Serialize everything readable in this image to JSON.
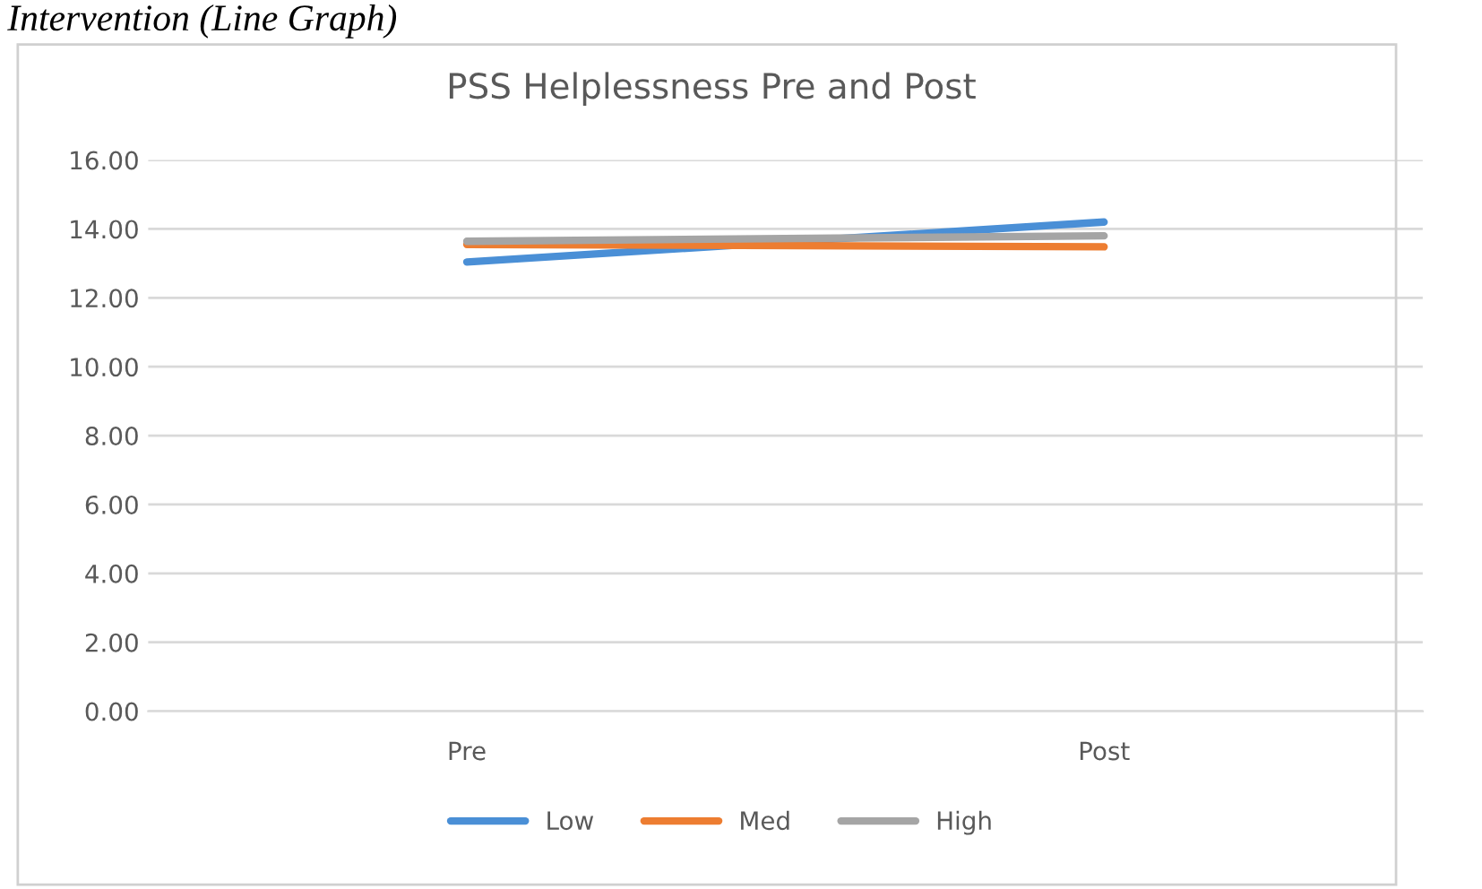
{
  "chart_data": {
    "type": "line",
    "title": "PSS Helplessness Pre and Post",
    "annotations": [
      "Intervention (Line Graph)"
    ],
    "categories": [
      "Pre",
      "Post"
    ],
    "series": [
      {
        "name": "Low",
        "color": "#4a8fd6",
        "values": [
          13.04,
          14.2
        ]
      },
      {
        "name": "Med",
        "color": "#ed7d31",
        "values": [
          13.55,
          13.48
        ]
      },
      {
        "name": "High",
        "color": "#a5a5a5",
        "values": [
          13.64,
          13.8
        ]
      }
    ],
    "ylim": [
      0,
      16
    ],
    "yticks": [
      {
        "value": 0,
        "label": "0.00"
      },
      {
        "value": 2,
        "label": "2.00"
      },
      {
        "value": 4,
        "label": "4.00"
      },
      {
        "value": 6,
        "label": "6.00"
      },
      {
        "value": 8,
        "label": "8.00"
      },
      {
        "value": 10,
        "label": "10.00"
      },
      {
        "value": 12,
        "label": "12.00"
      },
      {
        "value": 14,
        "label": "14.00"
      },
      {
        "value": 16,
        "label": "16.00"
      }
    ],
    "grid": "y",
    "legend": "bottom",
    "marker": "none",
    "line_style": "solid"
  }
}
